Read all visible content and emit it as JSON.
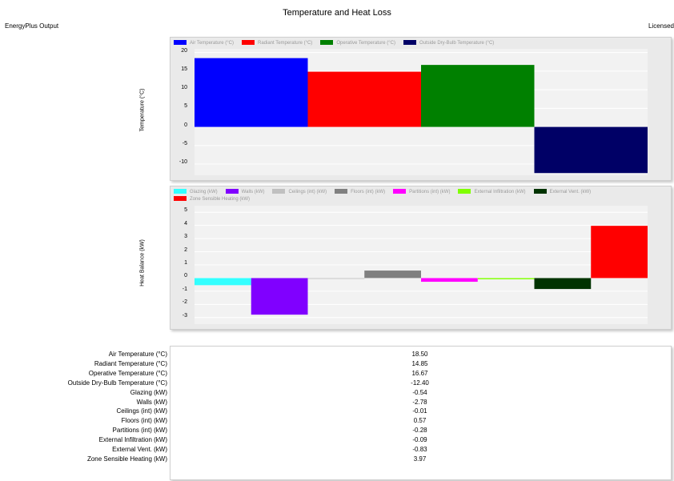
{
  "header": {
    "title": "Temperature and Heat Loss",
    "app_label": "EnergyPlus Output",
    "license_label": "Licensed"
  },
  "chart_data": [
    {
      "type": "bar",
      "title": "",
      "ylabel": "Temperature (°C)",
      "ylim": [
        -13,
        21
      ],
      "yticks": [
        -10,
        -5,
        0,
        5,
        10,
        15,
        20
      ],
      "grid": true,
      "legend_position": "top",
      "series": [
        {
          "name": "Air Temperature (°C)",
          "value": 18.5,
          "color": "#0000ff"
        },
        {
          "name": "Radiant Temperature (°C)",
          "value": 14.85,
          "color": "#ff0000"
        },
        {
          "name": "Operative Temperature (°C)",
          "value": 16.67,
          "color": "#008000"
        },
        {
          "name": "Outside Dry-Bulb Temperature (°C)",
          "value": -12.4,
          "color": "#000066"
        }
      ]
    },
    {
      "type": "bar",
      "title": "",
      "ylabel": "Heat Balance (kW)",
      "ylim": [
        -3.5,
        5.5
      ],
      "yticks": [
        -3,
        -2,
        -1,
        0,
        1,
        2,
        3,
        4,
        5
      ],
      "grid": true,
      "legend_position": "top",
      "series": [
        {
          "name": "Glazing (kW)",
          "value": -0.54,
          "color": "#33ffff"
        },
        {
          "name": "Walls (kW)",
          "value": -2.78,
          "color": "#8000ff"
        },
        {
          "name": "Ceilings (int) (kW)",
          "value": -0.01,
          "color": "#c0c0c0"
        },
        {
          "name": "Floors (int) (kW)",
          "value": 0.57,
          "color": "#808080"
        },
        {
          "name": "Partitions (int) (kW)",
          "value": -0.28,
          "color": "#ff00ff"
        },
        {
          "name": "External Infiltration (kW)",
          "value": -0.09,
          "color": "#80ff00"
        },
        {
          "name": "External Vent. (kW)",
          "value": -0.83,
          "color": "#003300"
        },
        {
          "name": "Zone Sensible Heating (kW)",
          "value": 3.97,
          "color": "#ff0000"
        }
      ]
    }
  ],
  "table": {
    "rows": [
      {
        "label": "Air Temperature (°C)",
        "value": "18.50"
      },
      {
        "label": "Radiant Temperature (°C)",
        "value": "14.85"
      },
      {
        "label": "Operative Temperature (°C)",
        "value": "16.67"
      },
      {
        "label": "Outside Dry-Bulb Temperature (°C)",
        "value": "-12.40"
      },
      {
        "label": "Glazing (kW)",
        "value": "-0.54"
      },
      {
        "label": "Walls (kW)",
        "value": "-2.78"
      },
      {
        "label": "Ceilings (int) (kW)",
        "value": "-0.01"
      },
      {
        "label": "Floors (int) (kW)",
        "value": "0.57"
      },
      {
        "label": "Partitions (int) (kW)",
        "value": "-0.28"
      },
      {
        "label": "External Infiltration (kW)",
        "value": "-0.09"
      },
      {
        "label": "External Vent. (kW)",
        "value": "-0.83"
      },
      {
        "label": "Zone Sensible Heating (kW)",
        "value": "3.97"
      }
    ]
  }
}
